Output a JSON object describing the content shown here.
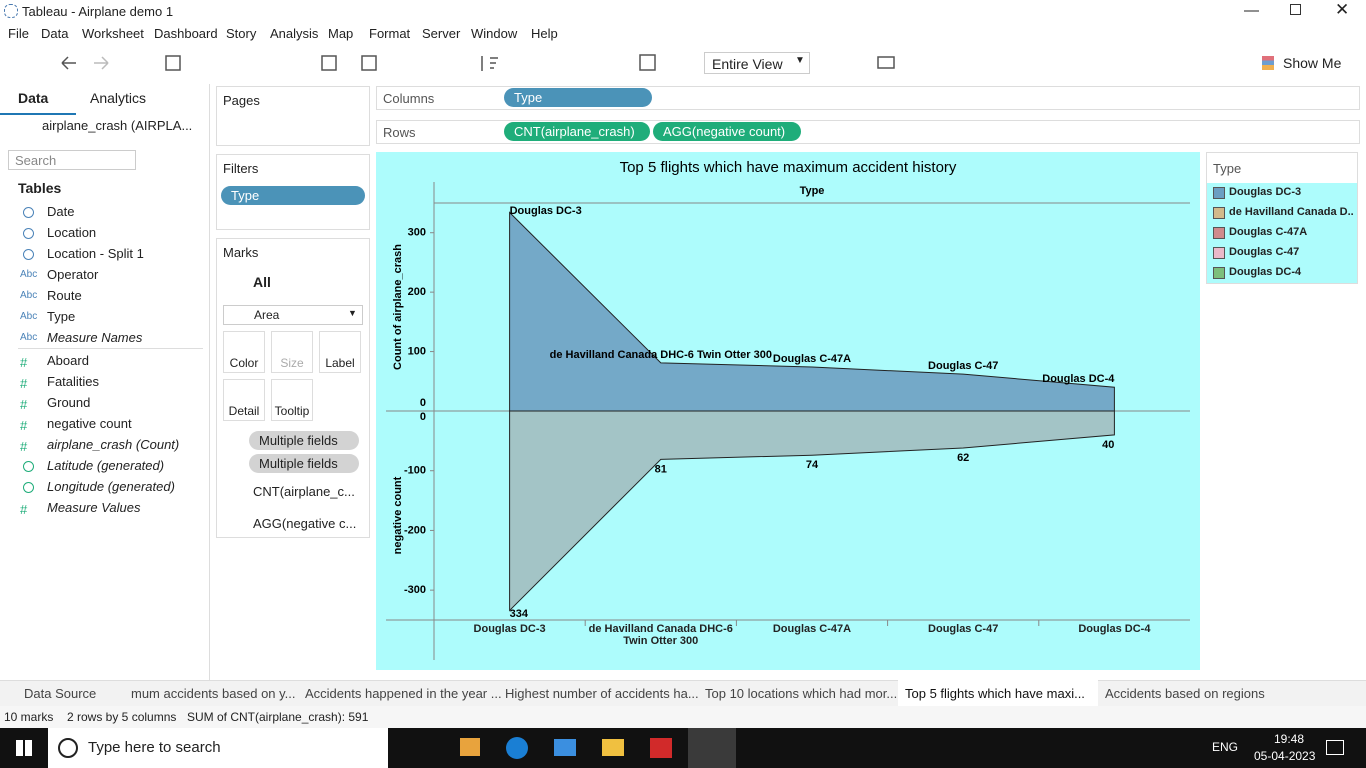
{
  "window": {
    "title": "Tableau - Airplane demo 1"
  },
  "menu": [
    "File",
    "Data",
    "Worksheet",
    "Dashboard",
    "Story",
    "Analysis",
    "Map",
    "Format",
    "Server",
    "Window",
    "Help"
  ],
  "toolbar": {
    "fit": "Entire View",
    "show_me": "Show Me"
  },
  "data_pane": {
    "tabs": [
      "Data",
      "Analytics"
    ],
    "source": "airplane_crash (AIRPLA...",
    "search": "Search",
    "tables": "Tables",
    "fields": [
      {
        "icon": null,
        "name": "Date"
      },
      {
        "icon": null,
        "name": "Location"
      },
      {
        "icon": null,
        "name": "Location - Split 1"
      },
      {
        "icon": "Abc",
        "name": "Operator"
      },
      {
        "icon": "Abc",
        "name": "Route"
      },
      {
        "icon": "Abc",
        "name": "Type"
      },
      {
        "icon": "Abc",
        "name": "Measure Names",
        "italic": true
      },
      {
        "icon": "#",
        "name": "Aboard"
      },
      {
        "icon": "#",
        "name": "Fatalities"
      },
      {
        "icon": "#",
        "name": "Ground"
      },
      {
        "icon": "#",
        "name": "negative count"
      },
      {
        "icon": "#",
        "name": "airplane_crash (Count)",
        "italic": true
      },
      {
        "icon": null,
        "name": "Latitude (generated)",
        "italic": true
      },
      {
        "icon": null,
        "name": "Longitude (generated)",
        "italic": true
      },
      {
        "icon": "#",
        "name": "Measure Values",
        "italic": true
      }
    ]
  },
  "pages": "Pages",
  "filters": {
    "title": "Filters",
    "pills": [
      "Type"
    ]
  },
  "marks": {
    "title": "Marks",
    "all": "All",
    "mark_type": "Area",
    "buttons": [
      "Color",
      "Size",
      "Label",
      "Detail",
      "Tooltip"
    ],
    "fields": [
      "Multiple fields",
      "Multiple fields"
    ],
    "measures": [
      "CNT(airplane_c...",
      "AGG(negative c..."
    ]
  },
  "shelves": {
    "columns": {
      "label": "Columns",
      "pills": [
        "Type"
      ]
    },
    "rows": {
      "label": "Rows",
      "pills": [
        "CNT(airplane_crash)",
        "AGG(negative count)"
      ]
    }
  },
  "chart_data": [
    {
      "type": "area",
      "title": "Top 5 flights which have maximum accident history",
      "header": "Type",
      "y_label": "Count of airplane_crash",
      "categories": [
        "Douglas DC-3",
        "de Havilland Canada DHC-6 Twin Otter 300",
        "Douglas C-47A",
        "Douglas C-47",
        "Douglas DC-4"
      ],
      "values": [
        334,
        81,
        74,
        62,
        40
      ],
      "color": "#74a9c8",
      "ylim": [
        0,
        350
      ],
      "yticks": [
        0,
        100,
        200,
        300
      ],
      "legend": {
        "title": "Type",
        "items": [
          {
            "label": "Douglas DC-3",
            "color": "#6b9ec2"
          },
          {
            "label": "de Havilland Canada D..",
            "color": "#d2b98a"
          },
          {
            "label": "Douglas C-47A",
            "color": "#d08a8c"
          },
          {
            "label": "Douglas C-47",
            "color": "#eab8c9"
          },
          {
            "label": "Douglas DC-4",
            "color": "#7cbf7c"
          }
        ]
      }
    },
    {
      "type": "area",
      "y_label": "negative count",
      "categories": [
        "Douglas DC-3",
        "de Havilland Canada DHC-6 Twin Otter 300",
        "Douglas C-47A",
        "Douglas C-47",
        "Douglas DC-4"
      ],
      "values": [
        -334,
        -81,
        -74,
        -62,
        -40
      ],
      "value_labels": [
        "334",
        "81",
        "74",
        "62",
        "40"
      ],
      "color": "#a3c4c6",
      "ylim": [
        -350,
        0
      ],
      "yticks": [
        -300,
        -200,
        -100,
        0
      ]
    }
  ],
  "sheet_tabs": [
    "Data Source",
    "mum accidents based on y...",
    "Accidents happened in the year ...",
    "Highest number of accidents ha...",
    "Top 10 locations which had mor...",
    "Top 5 flights which have maxi...",
    "Accidents based on regions"
  ],
  "status": [
    "10 marks",
    "2 rows by 5 columns",
    "SUM of CNT(airplane_crash): 591"
  ],
  "taskbar": {
    "search": "Type here to search",
    "lang": "ENG",
    "time": "19:48",
    "date": "05-04-2023"
  }
}
